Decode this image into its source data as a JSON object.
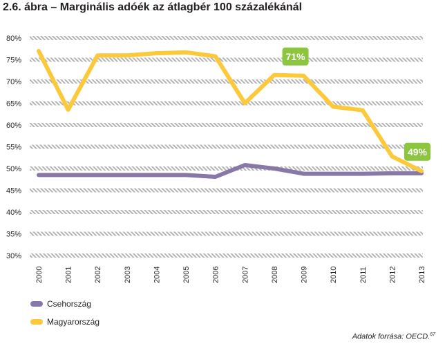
{
  "title": "2.6. ábra – Marginális adóék az átlagbér 100 százalékánál",
  "source": {
    "text": "Adatok forrása: OECD.",
    "footnote": "67"
  },
  "chart_data": {
    "type": "line",
    "title": "2.6. ábra – Marginális adóék az átlagbér 100 százalékánál",
    "xlabel": "",
    "ylabel": "",
    "x": [
      "2000",
      "2001",
      "2002",
      "2003",
      "2004",
      "2005",
      "2006",
      "2007",
      "2008",
      "2009",
      "2010",
      "2011",
      "2012",
      "2013"
    ],
    "ylim": [
      30,
      80
    ],
    "yticks": [
      "30%",
      "35%",
      "40%",
      "45%",
      "50%",
      "55%",
      "60%",
      "65%",
      "70%",
      "75%",
      "80%"
    ],
    "grid": true,
    "legend_placement": "bottom-left",
    "series": [
      {
        "name": "Csehország",
        "color": "#8878a8",
        "values": [
          48.5,
          48.5,
          48.5,
          48.5,
          48.5,
          48.5,
          48.1,
          50.8,
          50.0,
          48.8,
          48.8,
          48.8,
          48.9,
          48.9
        ]
      },
      {
        "name": "Magyarország",
        "color": "#fcc93b",
        "values": [
          77.0,
          63.5,
          76.0,
          76.0,
          76.5,
          76.7,
          75.8,
          65.0,
          71.5,
          71.3,
          64.2,
          63.4,
          52.8,
          49.4
        ]
      }
    ],
    "annotations": [
      {
        "text": "71%",
        "x": "2009",
        "y": 71.3,
        "color": "#8cc63f"
      },
      {
        "text": "49%",
        "x": "2013",
        "y": 49.4,
        "color": "#8cc63f"
      }
    ]
  }
}
